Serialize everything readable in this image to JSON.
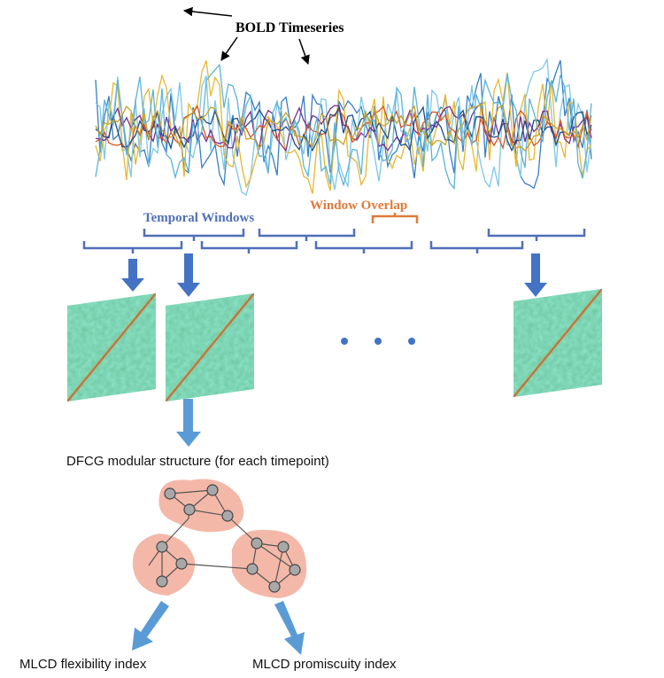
{
  "labels": {
    "timeseries": "BOLD Timeseries",
    "windows": "Temporal Windows",
    "overlap": "Window Overlap"
  },
  "structure_caption": "DFCG modular structure (for each timepoint)",
  "outputs": [
    "MLCD flexibility index",
    "MLCD promiscuity index"
  ]
}
